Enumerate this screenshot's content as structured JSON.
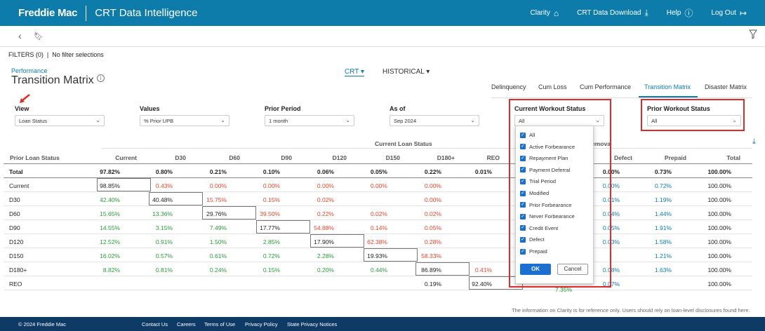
{
  "header": {
    "logo": "Freddie Mac",
    "title": "CRT Data Intelligence",
    "nav": [
      {
        "label": "Clarity",
        "icon": "home-icon"
      },
      {
        "label": "CRT Data Download",
        "icon": "download-icon"
      },
      {
        "label": "Help",
        "icon": "help-icon"
      },
      {
        "label": "Log Out",
        "icon": "logout-icon"
      }
    ]
  },
  "filters": {
    "label": "FILTERS (0)",
    "sep": "|",
    "value": "No filter selections"
  },
  "page": {
    "section": "Performance",
    "title": "Transition Matrix"
  },
  "toggles": {
    "crt": "CRT",
    "historical": "HISTORICAL"
  },
  "tabs": [
    "Delinquency",
    "Cum Loss",
    "Cum Performance",
    "Transition Matrix",
    "Disaster Matrix"
  ],
  "controls": {
    "view": {
      "label": "View",
      "value": "Loan Status"
    },
    "values": {
      "label": "Values",
      "value": "% Prior UPB"
    },
    "prior_period": {
      "label": "Prior Period",
      "value": "1 month"
    },
    "as_of": {
      "label": "As of",
      "value": "Sep 2024"
    },
    "current_workout": {
      "label": "Current Workout Status",
      "value": "All"
    },
    "prior_workout": {
      "label": "Prior Workout Status",
      "value": "All"
    }
  },
  "dropdown": {
    "items": [
      "All",
      "Active Forbearance",
      "Repayment Plan",
      "Payment Deferral",
      "Trial Period",
      "Modified",
      "Prior Forbearance",
      "Never Forbearance",
      "Credit Event",
      "Defect",
      "Prepaid"
    ],
    "ok": "OK",
    "cancel": "Cancel"
  },
  "table": {
    "group_header": "Current Loan Status",
    "partial_header": "emova",
    "row_header": "Prior Loan Status",
    "columns": [
      "Current",
      "D30",
      "D60",
      "D90",
      "D120",
      "D150",
      "D180+",
      "REO",
      "Defect",
      "Prepaid",
      "Total"
    ],
    "rows": [
      {
        "label": "Total",
        "cells": [
          "97.82%",
          "0.80%",
          "0.21%",
          "0.10%",
          "0.06%",
          "0.05%",
          "0.22%",
          "0.01%",
          "0.00%",
          "0.73%",
          "100.00%"
        ]
      },
      {
        "label": "Current",
        "cells": [
          "98.85%",
          "0.43%",
          "0.00%",
          "0.00%",
          "0.00%",
          "0.00%",
          "0.00%",
          "",
          "0.00%",
          "0.72%",
          "100.00%"
        ]
      },
      {
        "label": "D30",
        "cells": [
          "42.40%",
          "40.48%",
          "15.75%",
          "0.15%",
          "0.02%",
          "",
          "0.00%",
          "",
          "0.01%",
          "1.19%",
          "100.00%"
        ]
      },
      {
        "label": "D60",
        "cells": [
          "15.65%",
          "13.36%",
          "29.76%",
          "39.50%",
          "0.22%",
          "0.02%",
          "0.02%",
          "",
          "0.04%",
          "1.44%",
          "100.00%"
        ]
      },
      {
        "label": "D90",
        "cells": [
          "14.55%",
          "3.15%",
          "7.49%",
          "17.77%",
          "54.88%",
          "0.14%",
          "0.05%",
          "",
          "0.05%",
          "1.91%",
          "100.00%"
        ]
      },
      {
        "label": "D120",
        "cells": [
          "12.52%",
          "0.91%",
          "1.50%",
          "2.85%",
          "17.90%",
          "62.38%",
          "0.28%",
          "",
          "0.03%",
          "1.58%",
          "100.00%"
        ]
      },
      {
        "label": "D150",
        "cells": [
          "16.02%",
          "0.57%",
          "0.61%",
          "0.72%",
          "2.28%",
          "19.93%",
          "58.33%",
          "",
          "",
          "1.21%",
          "100.00%"
        ]
      },
      {
        "label": "D180+",
        "cells": [
          "8.82%",
          "0.81%",
          "0.24%",
          "0.15%",
          "0.20%",
          "0.44%",
          "86.89%",
          "0.41%",
          "0.08%",
          "1.63%",
          "100.00%"
        ]
      },
      {
        "label": "REO",
        "cells": [
          "",
          "",
          "",
          "",
          "",
          "",
          "0.19%",
          "92.40%",
          "0.07%",
          "",
          "100.00%"
        ]
      }
    ],
    "extra": {
      "reo_partial": "7.35%"
    }
  },
  "footnote": "The information on Clarity is for reference only. Users should rely on loan-level disclosures found here.",
  "footer": {
    "copyright": "© 2024 Freddie Mac",
    "links": [
      "Contact Us",
      "Careers",
      "Terms of Use",
      "Privacy Policy",
      "State Privacy Notices"
    ]
  }
}
